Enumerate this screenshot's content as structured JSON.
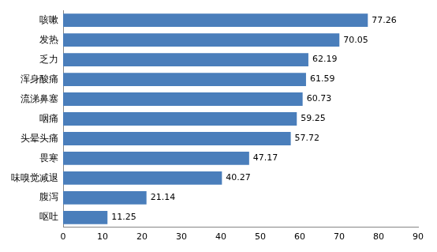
{
  "chart_data": {
    "type": "bar",
    "orientation": "horizontal",
    "categories": [
      "咳嗽",
      "发热",
      "乏力",
      "浑身酸痛",
      "流涕鼻塞",
      "咽痛",
      "头晕头痛",
      "畏寒",
      "味嗅觉减退",
      "腹泻",
      "呕吐"
    ],
    "values": [
      77.26,
      70.05,
      62.19,
      61.59,
      60.73,
      59.25,
      57.72,
      47.17,
      40.27,
      21.14,
      11.25
    ],
    "color": "#4a7ebb",
    "xlim": [
      0,
      90
    ],
    "xticks": [
      0,
      10,
      20,
      30,
      40,
      50,
      60,
      70,
      80,
      90
    ],
    "grid": false,
    "data_labels": true
  }
}
